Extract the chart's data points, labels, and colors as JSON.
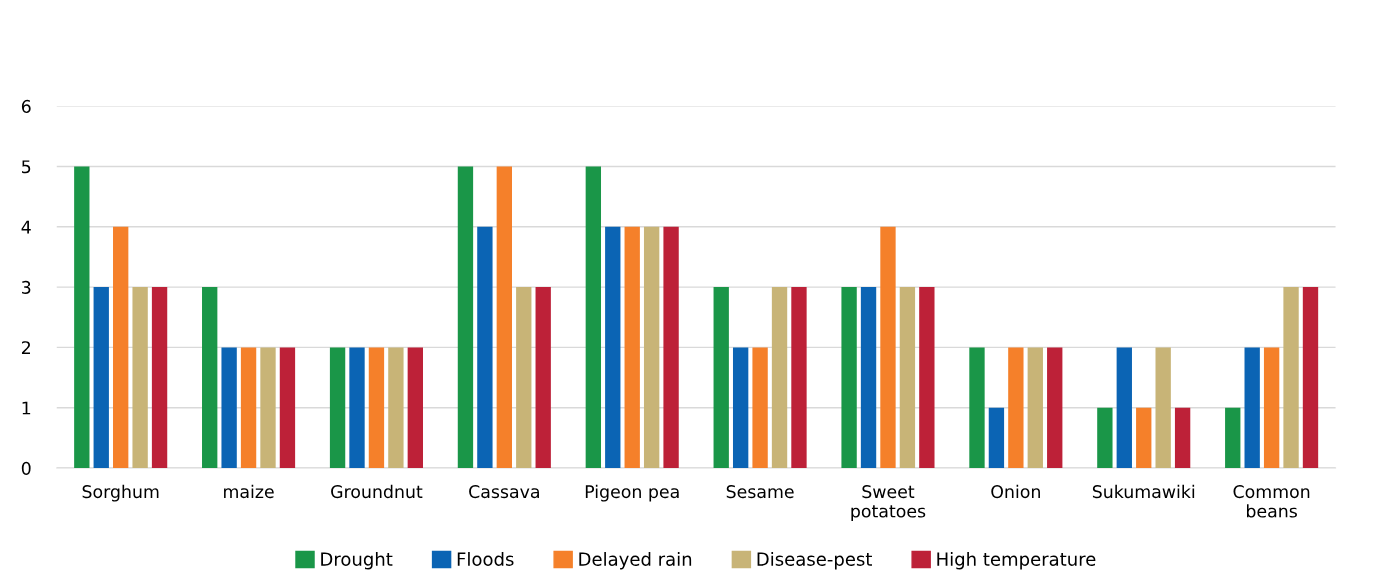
{
  "chart_data": {
    "type": "bar",
    "categories": [
      "Sorghum",
      "maize",
      "Groundnut",
      "Cassava",
      "Pigeon pea",
      "Sesame",
      "Sweet potatoes",
      "Onion",
      "Sukumawiki",
      "Common beans"
    ],
    "series": [
      {
        "name": "Drought",
        "color": "#1a9648",
        "values": [
          5,
          3,
          2,
          5,
          5,
          3,
          3,
          2,
          1,
          1
        ]
      },
      {
        "name": "Floods",
        "color": "#0b64b4",
        "values": [
          3,
          2,
          2,
          4,
          4,
          2,
          3,
          1,
          2,
          2
        ]
      },
      {
        "name": "Delayed rain",
        "color": "#f5802a",
        "values": [
          4,
          2,
          2,
          5,
          4,
          2,
          4,
          2,
          1,
          2
        ]
      },
      {
        "name": "Disease-pest",
        "color": "#c8b477",
        "values": [
          3,
          2,
          2,
          3,
          4,
          3,
          3,
          2,
          2,
          3
        ]
      },
      {
        "name": "High temperature",
        "color": "#bd2138",
        "values": [
          3,
          2,
          2,
          3,
          4,
          3,
          3,
          2,
          1,
          3
        ]
      }
    ],
    "ylim": [
      0,
      6
    ],
    "yticks": [
      0,
      1,
      2,
      3,
      4,
      5,
      6
    ],
    "grid": "y",
    "legend": "bottom"
  }
}
